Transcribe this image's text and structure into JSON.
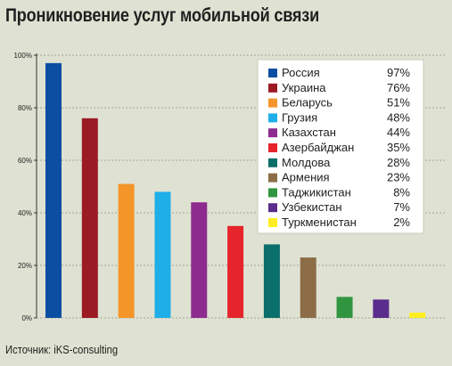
{
  "title": "Проникновение услуг мобильной связи",
  "source": "Источник: iKS-consulting",
  "chart_data": {
    "type": "bar",
    "title": "Проникновение услуг мобильной связи",
    "categories": [
      "Россия",
      "Украина",
      "Беларусь",
      "Грузия",
      "Казахстан",
      "Азербайджан",
      "Молдова",
      "Армения",
      "Таджикистан",
      "Узбекистан",
      "Туркменистан"
    ],
    "values": [
      97,
      76,
      51,
      48,
      44,
      35,
      28,
      23,
      8,
      7,
      2
    ],
    "value_labels": [
      "97%",
      "76%",
      "51%",
      "48%",
      "44%",
      "35%",
      "28%",
      "23%",
      "8%",
      "7%",
      "2%"
    ],
    "colors": [
      "#0c4ea2",
      "#9b1b24",
      "#f4952a",
      "#1eaee8",
      "#8e2b8e",
      "#e5242b",
      "#0a6e6a",
      "#8c6d48",
      "#31953f",
      "#5a2d8c",
      "#ffed1f"
    ],
    "yticks": [
      0,
      20,
      40,
      60,
      80,
      100
    ],
    "ytick_labels": [
      "0%",
      "20%",
      "40%",
      "60%",
      "80%",
      "100%"
    ],
    "ylim": [
      0,
      100
    ],
    "grid": true,
    "legend": "top-right"
  }
}
